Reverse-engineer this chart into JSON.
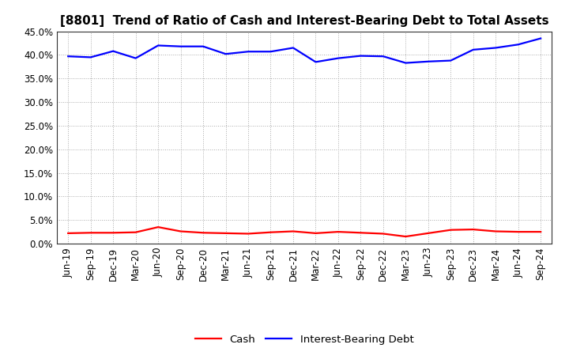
{
  "title": "[8801]  Trend of Ratio of Cash and Interest-Bearing Debt to Total Assets",
  "labels": [
    "Jun-19",
    "Sep-19",
    "Dec-19",
    "Mar-20",
    "Jun-20",
    "Sep-20",
    "Dec-20",
    "Mar-21",
    "Jun-21",
    "Sep-21",
    "Dec-21",
    "Mar-22",
    "Jun-22",
    "Sep-22",
    "Dec-22",
    "Mar-23",
    "Jun-23",
    "Sep-23",
    "Dec-23",
    "Mar-24",
    "Jun-24",
    "Sep-24"
  ],
  "cash": [
    2.2,
    2.3,
    2.3,
    2.4,
    3.5,
    2.6,
    2.3,
    2.2,
    2.1,
    2.4,
    2.6,
    2.2,
    2.5,
    2.3,
    2.1,
    1.5,
    2.2,
    2.9,
    3.0,
    2.6,
    2.5,
    2.5
  ],
  "debt": [
    39.7,
    39.5,
    40.8,
    39.3,
    42.0,
    41.8,
    41.8,
    40.2,
    40.7,
    40.7,
    41.5,
    38.5,
    39.3,
    39.8,
    39.7,
    38.3,
    38.6,
    38.8,
    41.1,
    41.5,
    42.2,
    43.5
  ],
  "cash_color": "#ff0000",
  "debt_color": "#0000ff",
  "background_color": "#ffffff",
  "grid_color": "#aaaaaa",
  "ylim": [
    0.0,
    45.0
  ],
  "yticks": [
    0.0,
    5.0,
    10.0,
    15.0,
    20.0,
    25.0,
    30.0,
    35.0,
    40.0,
    45.0
  ],
  "legend_cash": "Cash",
  "legend_debt": "Interest-Bearing Debt",
  "title_fontsize": 11,
  "axis_fontsize": 8.5,
  "legend_fontsize": 9.5,
  "line_width": 1.6
}
